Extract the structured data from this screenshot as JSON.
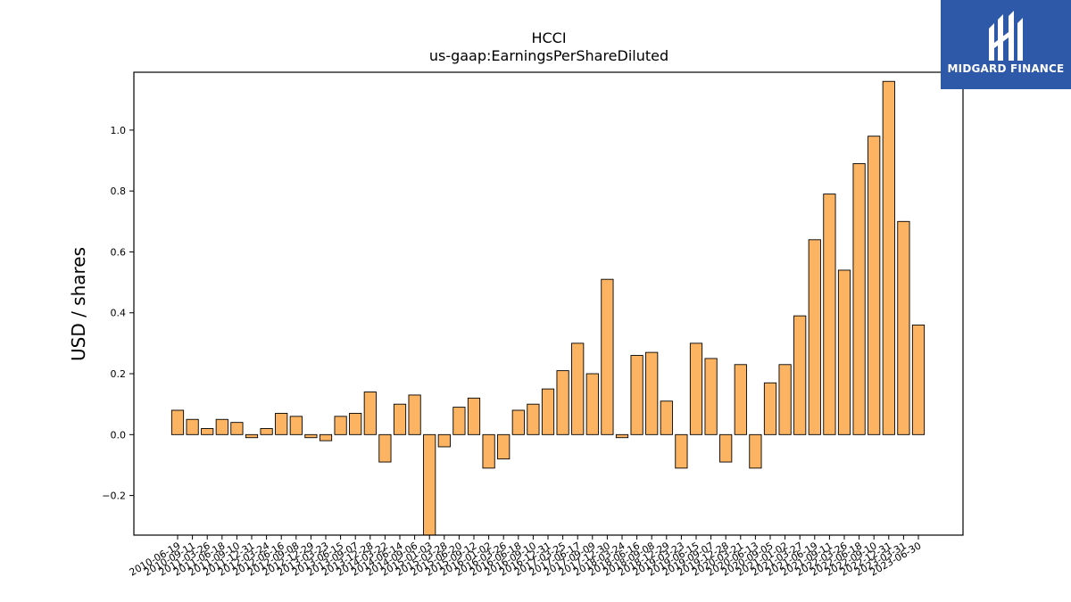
{
  "chart_data": {
    "type": "bar",
    "title": "HCCI",
    "subtitle": "us-gaap:EarningsPerShareDiluted",
    "xlabel": "",
    "ylabel": "USD / shares",
    "ylim": [
      -0.33,
      1.19
    ],
    "yticks": [
      -0.2,
      0.0,
      0.2,
      0.4,
      0.6,
      0.8,
      1.0
    ],
    "ytick_labels": [
      "−0.2",
      "0.0",
      "0.2",
      "0.4",
      "0.6",
      "0.8",
      "1.0"
    ],
    "bar_color": "#fdb462",
    "edge_color": "#000000",
    "grid": false,
    "categories": [
      "2010-06-19",
      "2010-09-11",
      "2011-03-26",
      "2011-06-18",
      "2011-09-10",
      "2011-12-31",
      "2012-03-24",
      "2012-06-16",
      "2012-09-08",
      "2012-12-29",
      "2013-03-23",
      "2013-06-15",
      "2013-09-07",
      "2013-12-28",
      "2014-03-22",
      "2014-06-14",
      "2014-09-06",
      "2015-01-03",
      "2015-03-28",
      "2015-06-20",
      "2015-09-12",
      "2016-01-02",
      "2016-03-26",
      "2016-06-18",
      "2016-09-10",
      "2016-12-31",
      "2017-03-25",
      "2017-06-17",
      "2017-09-09",
      "2017-12-30",
      "2018-03-24",
      "2018-06-16",
      "2018-09-08",
      "2018-12-29",
      "2019-03-23",
      "2019-06-15",
      "2019-09-07",
      "2019-12-28",
      "2020-03-21",
      "2020-06-13",
      "2020-09-05",
      "2021-01-02",
      "2021-03-27",
      "2021-06-19",
      "2021-09-11",
      "2022-03-26",
      "2022-06-18",
      "2022-09-10",
      "2022-12-31",
      "2023-03-31",
      "2023-06-30"
    ],
    "values": [
      0.08,
      0.05,
      0.02,
      0.05,
      0.04,
      -0.01,
      0.02,
      0.07,
      0.06,
      -0.01,
      -0.02,
      0.06,
      0.07,
      0.14,
      -0.09,
      0.1,
      0.13,
      -0.33,
      -0.04,
      0.09,
      0.12,
      -0.11,
      -0.08,
      0.08,
      0.1,
      0.15,
      0.21,
      0.3,
      0.2,
      0.51,
      -0.01,
      0.26,
      0.27,
      0.11,
      -0.11,
      0.3,
      0.25,
      -0.09,
      0.23,
      -0.11,
      0.17,
      0.23,
      0.39,
      0.64,
      0.79,
      0.54,
      0.89,
      0.98,
      1.16,
      0.7,
      0.36
    ]
  },
  "logo": {
    "text": "MIDGARD FINANCE",
    "bg_color": "#2e59a8"
  }
}
